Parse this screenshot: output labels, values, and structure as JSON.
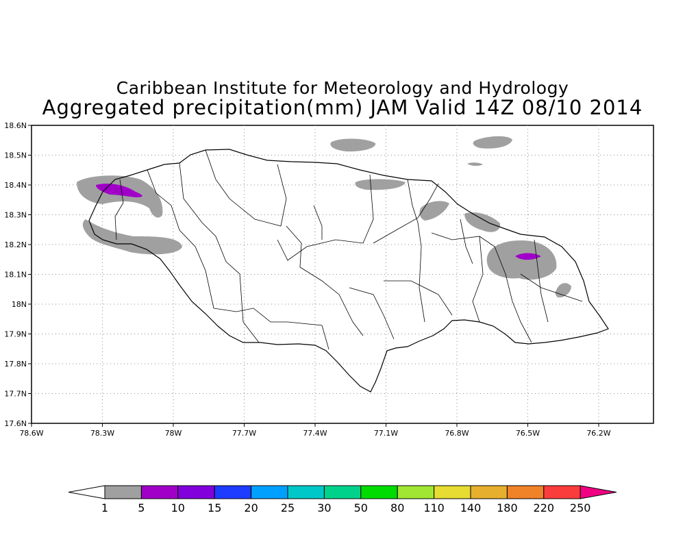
{
  "title": {
    "line1": "Caribbean Institute for Meteorology and Hydrology",
    "line2": "Aggregated precipitation(mm) JAM Valid 14Z 08/10 2014"
  },
  "map": {
    "region": "Jamaica",
    "lon_range": [
      -78.6,
      -76.0
    ],
    "lat_range": [
      17.6,
      18.6
    ],
    "grid": true,
    "x_ticks": [
      "78.6W",
      "78.3W",
      "78W",
      "77.7W",
      "77.4W",
      "77.1W",
      "76.8W",
      "76.5W",
      "76.2W"
    ],
    "y_ticks": [
      "17.6N",
      "17.7N",
      "17.8N",
      "17.9N",
      "18N",
      "18.1N",
      "18.2N",
      "18.3N",
      "18.4N",
      "18.5N",
      "18.6N"
    ]
  },
  "precip_areas": [
    {
      "lon": -78.22,
      "lat": 18.37,
      "class": "1-5"
    },
    {
      "lon": -78.28,
      "lat": 18.39,
      "class": "5-10"
    },
    {
      "lon": -78.05,
      "lat": 18.19,
      "class": "1-5"
    },
    {
      "lon": -77.25,
      "lat": 18.54,
      "class": "1-5"
    },
    {
      "lon": -76.58,
      "lat": 18.55,
      "class": "1-5"
    },
    {
      "lon": -77.1,
      "lat": 18.39,
      "class": "1-5"
    },
    {
      "lon": -76.9,
      "lat": 18.33,
      "class": "1-5"
    },
    {
      "lon": -76.65,
      "lat": 18.28,
      "class": "1-5"
    },
    {
      "lon": -76.5,
      "lat": 18.13,
      "class": "1-5"
    },
    {
      "lon": -76.5,
      "lat": 18.16,
      "class": "5-10"
    },
    {
      "lon": -76.38,
      "lat": 18.04,
      "class": "1-5"
    }
  ],
  "colorbar": {
    "labels": [
      "1",
      "5",
      "10",
      "15",
      "20",
      "25",
      "30",
      "50",
      "80",
      "110",
      "140",
      "180",
      "220",
      "250"
    ],
    "colors": [
      "#a0a0a0",
      "#a000c8",
      "#8200dc",
      "#1e3cff",
      "#00a0ff",
      "#00c8c8",
      "#00d28c",
      "#00dc00",
      "#a0e632",
      "#e6dc32",
      "#e6af2d",
      "#f08228",
      "#fa3c3c",
      "#f00082"
    ],
    "under_color": "#ffffff",
    "over_color": "#f00082"
  }
}
